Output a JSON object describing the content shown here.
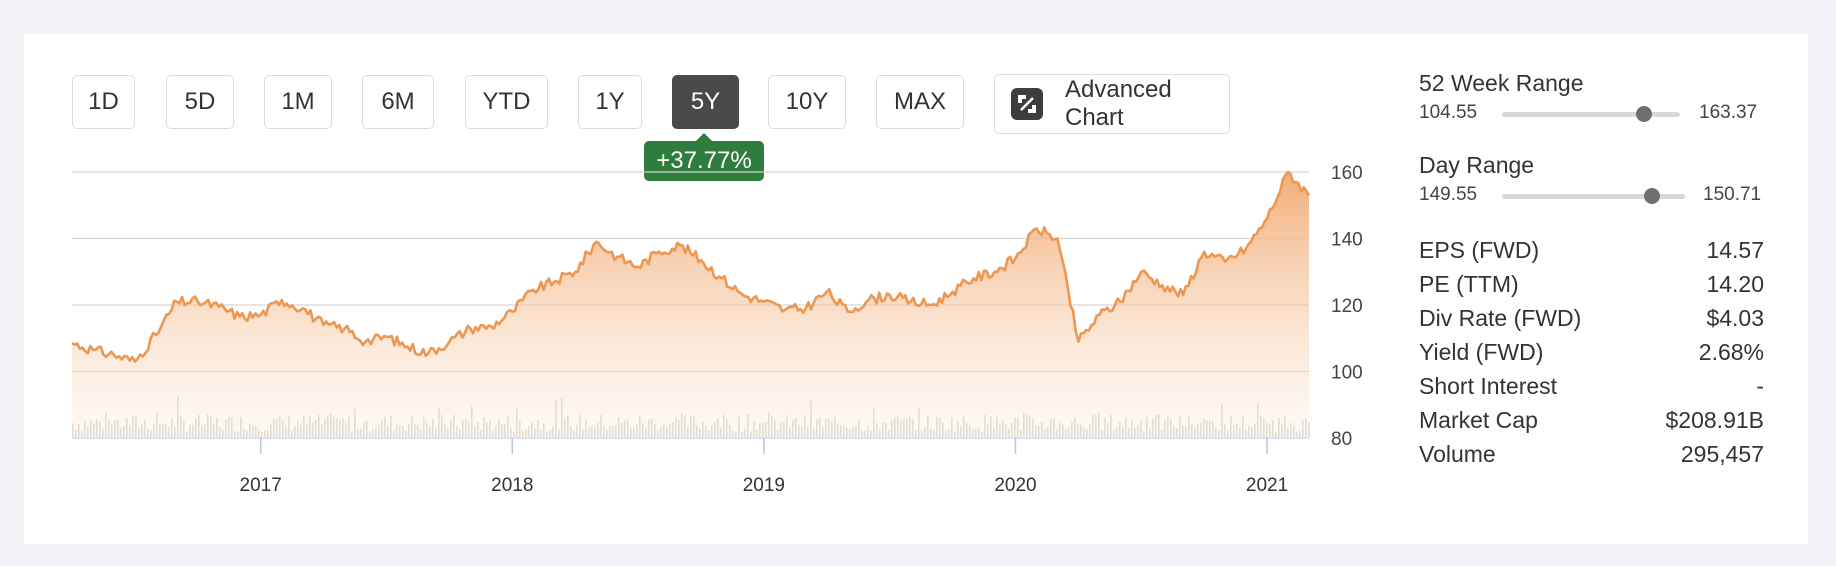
{
  "ranges": [
    {
      "label": "1D",
      "active": false
    },
    {
      "label": "5D",
      "active": false
    },
    {
      "label": "1M",
      "active": false
    },
    {
      "label": "6M",
      "active": false
    },
    {
      "label": "YTD",
      "active": false
    },
    {
      "label": "1Y",
      "active": false
    },
    {
      "label": "5Y",
      "active": true
    },
    {
      "label": "10Y",
      "active": false
    },
    {
      "label": "MAX",
      "active": false
    }
  ],
  "advanced_chart_label": "Advanced Chart",
  "change_badge": "+37.77%",
  "colors": {
    "line": "#ec9752",
    "badge": "#2e7d3e",
    "active_button": "#4a4a4a",
    "volume": "#d9d9d9"
  },
  "chart_data": {
    "type": "area",
    "ylim": [
      80,
      160
    ],
    "yticks": [
      "160",
      "140",
      "120",
      "100",
      "80"
    ],
    "xticks": [
      "2017",
      "2018",
      "2019",
      "2020",
      "2021"
    ],
    "x": [
      "2016-04",
      "2016-05",
      "2016-06",
      "2016-07",
      "2016-08",
      "2016-09",
      "2016-10",
      "2016-11",
      "2016-12",
      "2017-01",
      "2017-02",
      "2017-03",
      "2017-04",
      "2017-05",
      "2017-06",
      "2017-07",
      "2017-08",
      "2017-09",
      "2017-10",
      "2017-11",
      "2017-12",
      "2018-01",
      "2018-02",
      "2018-03",
      "2018-04",
      "2018-05",
      "2018-06",
      "2018-07",
      "2018-08",
      "2018-09",
      "2018-10",
      "2018-11",
      "2018-12",
      "2019-01",
      "2019-02",
      "2019-03",
      "2019-04",
      "2019-05",
      "2019-06",
      "2019-07",
      "2019-08",
      "2019-09",
      "2019-10",
      "2019-11",
      "2019-12",
      "2020-01",
      "2020-02",
      "2020-03",
      "2020-04",
      "2020-05",
      "2020-06",
      "2020-07",
      "2020-08",
      "2020-09",
      "2020-10",
      "2020-11",
      "2020-12",
      "2021-01",
      "2021-02",
      "2021-03"
    ],
    "close": [
      108.5,
      106.5,
      105,
      103,
      111,
      121,
      121,
      119.5,
      116.5,
      117,
      121.5,
      119,
      114,
      113,
      109,
      110.5,
      107.5,
      105.5,
      109,
      113,
      113.5,
      118,
      124.5,
      127,
      130,
      139,
      134.5,
      131.5,
      136,
      138,
      133.5,
      128,
      123,
      121,
      118.5,
      119,
      124,
      118,
      121.5,
      123,
      121,
      120,
      124,
      128,
      130,
      134,
      143,
      140,
      109,
      117,
      121,
      130,
      126,
      123,
      136,
      133,
      137,
      146,
      160,
      153
    ],
    "volume_note": "daily volume bars (gray) shown beneath price area"
  },
  "stats": {
    "week52": {
      "title": "52 Week Range",
      "low": "104.55",
      "high": "163.37",
      "position": 0.8
    },
    "day": {
      "title": "Day Range",
      "low": "149.55",
      "high": "150.71",
      "position": 0.82
    },
    "rows": [
      {
        "label": "EPS (FWD)",
        "value": "14.57"
      },
      {
        "label": "PE (TTM)",
        "value": "14.20"
      },
      {
        "label": "Div Rate (FWD)",
        "value": "$4.03"
      },
      {
        "label": "Yield (FWD)",
        "value": "2.68%"
      },
      {
        "label": "Short Interest",
        "value": "-"
      },
      {
        "label": "Market Cap",
        "value": "$208.91B"
      },
      {
        "label": "Volume",
        "value": "295,457"
      }
    ]
  }
}
